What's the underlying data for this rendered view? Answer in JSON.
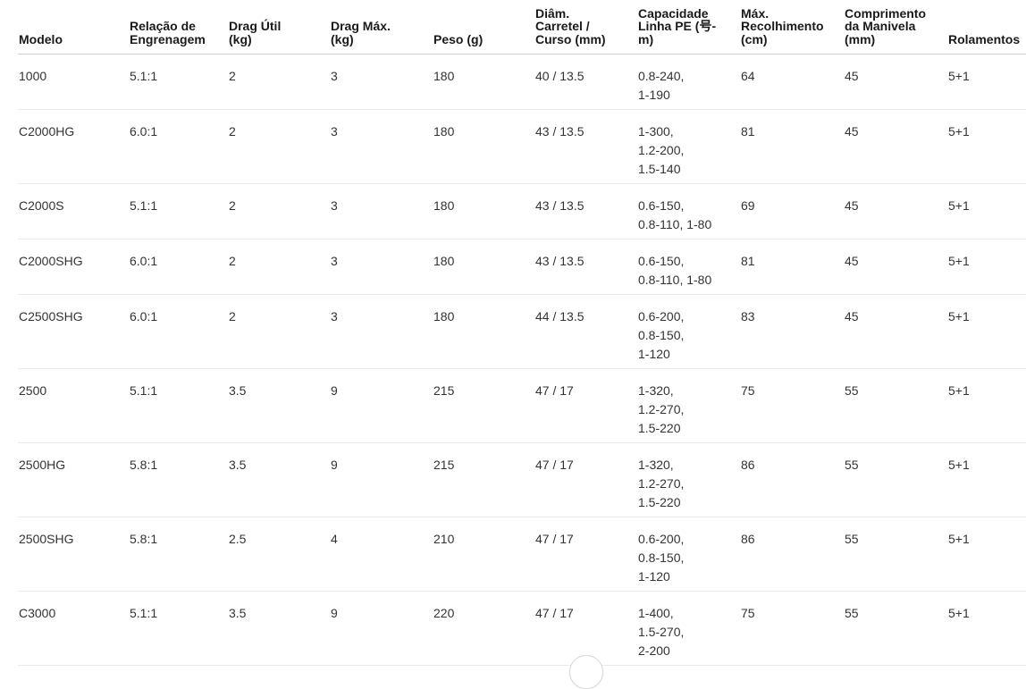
{
  "table": {
    "columns": [
      {
        "key": "modelo",
        "label": "Modelo"
      },
      {
        "key": "relacao-de-engrenagem",
        "label": "Relação de\nEngrenagem"
      },
      {
        "key": "drag-util-kg",
        "label": "Drag Útil\n(kg)"
      },
      {
        "key": "drag-max-kg",
        "label": "Drag Máx.\n(kg)"
      },
      {
        "key": "peso-g",
        "label": "Peso (g)"
      },
      {
        "key": "diam-carretel-curso-mm",
        "label": "Diâm.\nCarretel /\nCurso (mm)"
      },
      {
        "key": "capacidade-linha-pe",
        "label": "Capacidade\nLinha PE (号-\nm)"
      },
      {
        "key": "max-recolhimento-cm",
        "label": "Máx.\nRecolhimento\n(cm)"
      },
      {
        "key": "comprimento-da-manivela-mm",
        "label": "Comprimento\nda Manivela\n(mm)"
      },
      {
        "key": "rolamentos",
        "label": "Rolamentos"
      }
    ],
    "rows": [
      {
        "cells": [
          "1000",
          "5.1:1",
          "2",
          "3",
          "180",
          "40 / 13.5",
          "0.8-240,\n1-190",
          "64",
          "45",
          "5+1"
        ]
      },
      {
        "cells": [
          "C2000HG",
          "6.0:1",
          "2",
          "3",
          "180",
          "43 / 13.5",
          "1-300,\n1.2-200,\n1.5-140",
          "81",
          "45",
          "5+1"
        ]
      },
      {
        "cells": [
          "C2000S",
          "5.1:1",
          "2",
          "3",
          "180",
          "43 / 13.5",
          "0.6-150,\n0.8-110, 1-80",
          "69",
          "45",
          "5+1"
        ]
      },
      {
        "cells": [
          "C2000SHG",
          "6.0:1",
          "2",
          "3",
          "180",
          "43 / 13.5",
          "0.6-150,\n0.8-110, 1-80",
          "81",
          "45",
          "5+1"
        ]
      },
      {
        "cells": [
          "C2500SHG",
          "6.0:1",
          "2",
          "3",
          "180",
          "44 / 13.5",
          "0.6-200,\n0.8-150,\n1-120",
          "83",
          "45",
          "5+1"
        ]
      },
      {
        "cells": [
          "2500",
          "5.1:1",
          "3.5",
          "9",
          "215",
          "47 / 17",
          "1-320,\n1.2-270,\n1.5-220",
          "75",
          "55",
          "5+1"
        ]
      },
      {
        "cells": [
          "2500HG",
          "5.8:1",
          "3.5",
          "9",
          "215",
          "47 / 17",
          "1-320,\n1.2-270,\n1.5-220",
          "86",
          "55",
          "5+1"
        ]
      },
      {
        "cells": [
          "2500SHG",
          "5.8:1",
          "2.5",
          "4",
          "210",
          "47 / 17",
          "0.6-200,\n0.8-150,\n1-120",
          "86",
          "55",
          "5+1"
        ]
      },
      {
        "cells": [
          "C3000",
          "5.1:1",
          "3.5",
          "9",
          "220",
          "47 / 17",
          "1-400,\n1.5-270,\n2-200",
          "75",
          "55",
          "5+1"
        ]
      }
    ]
  }
}
